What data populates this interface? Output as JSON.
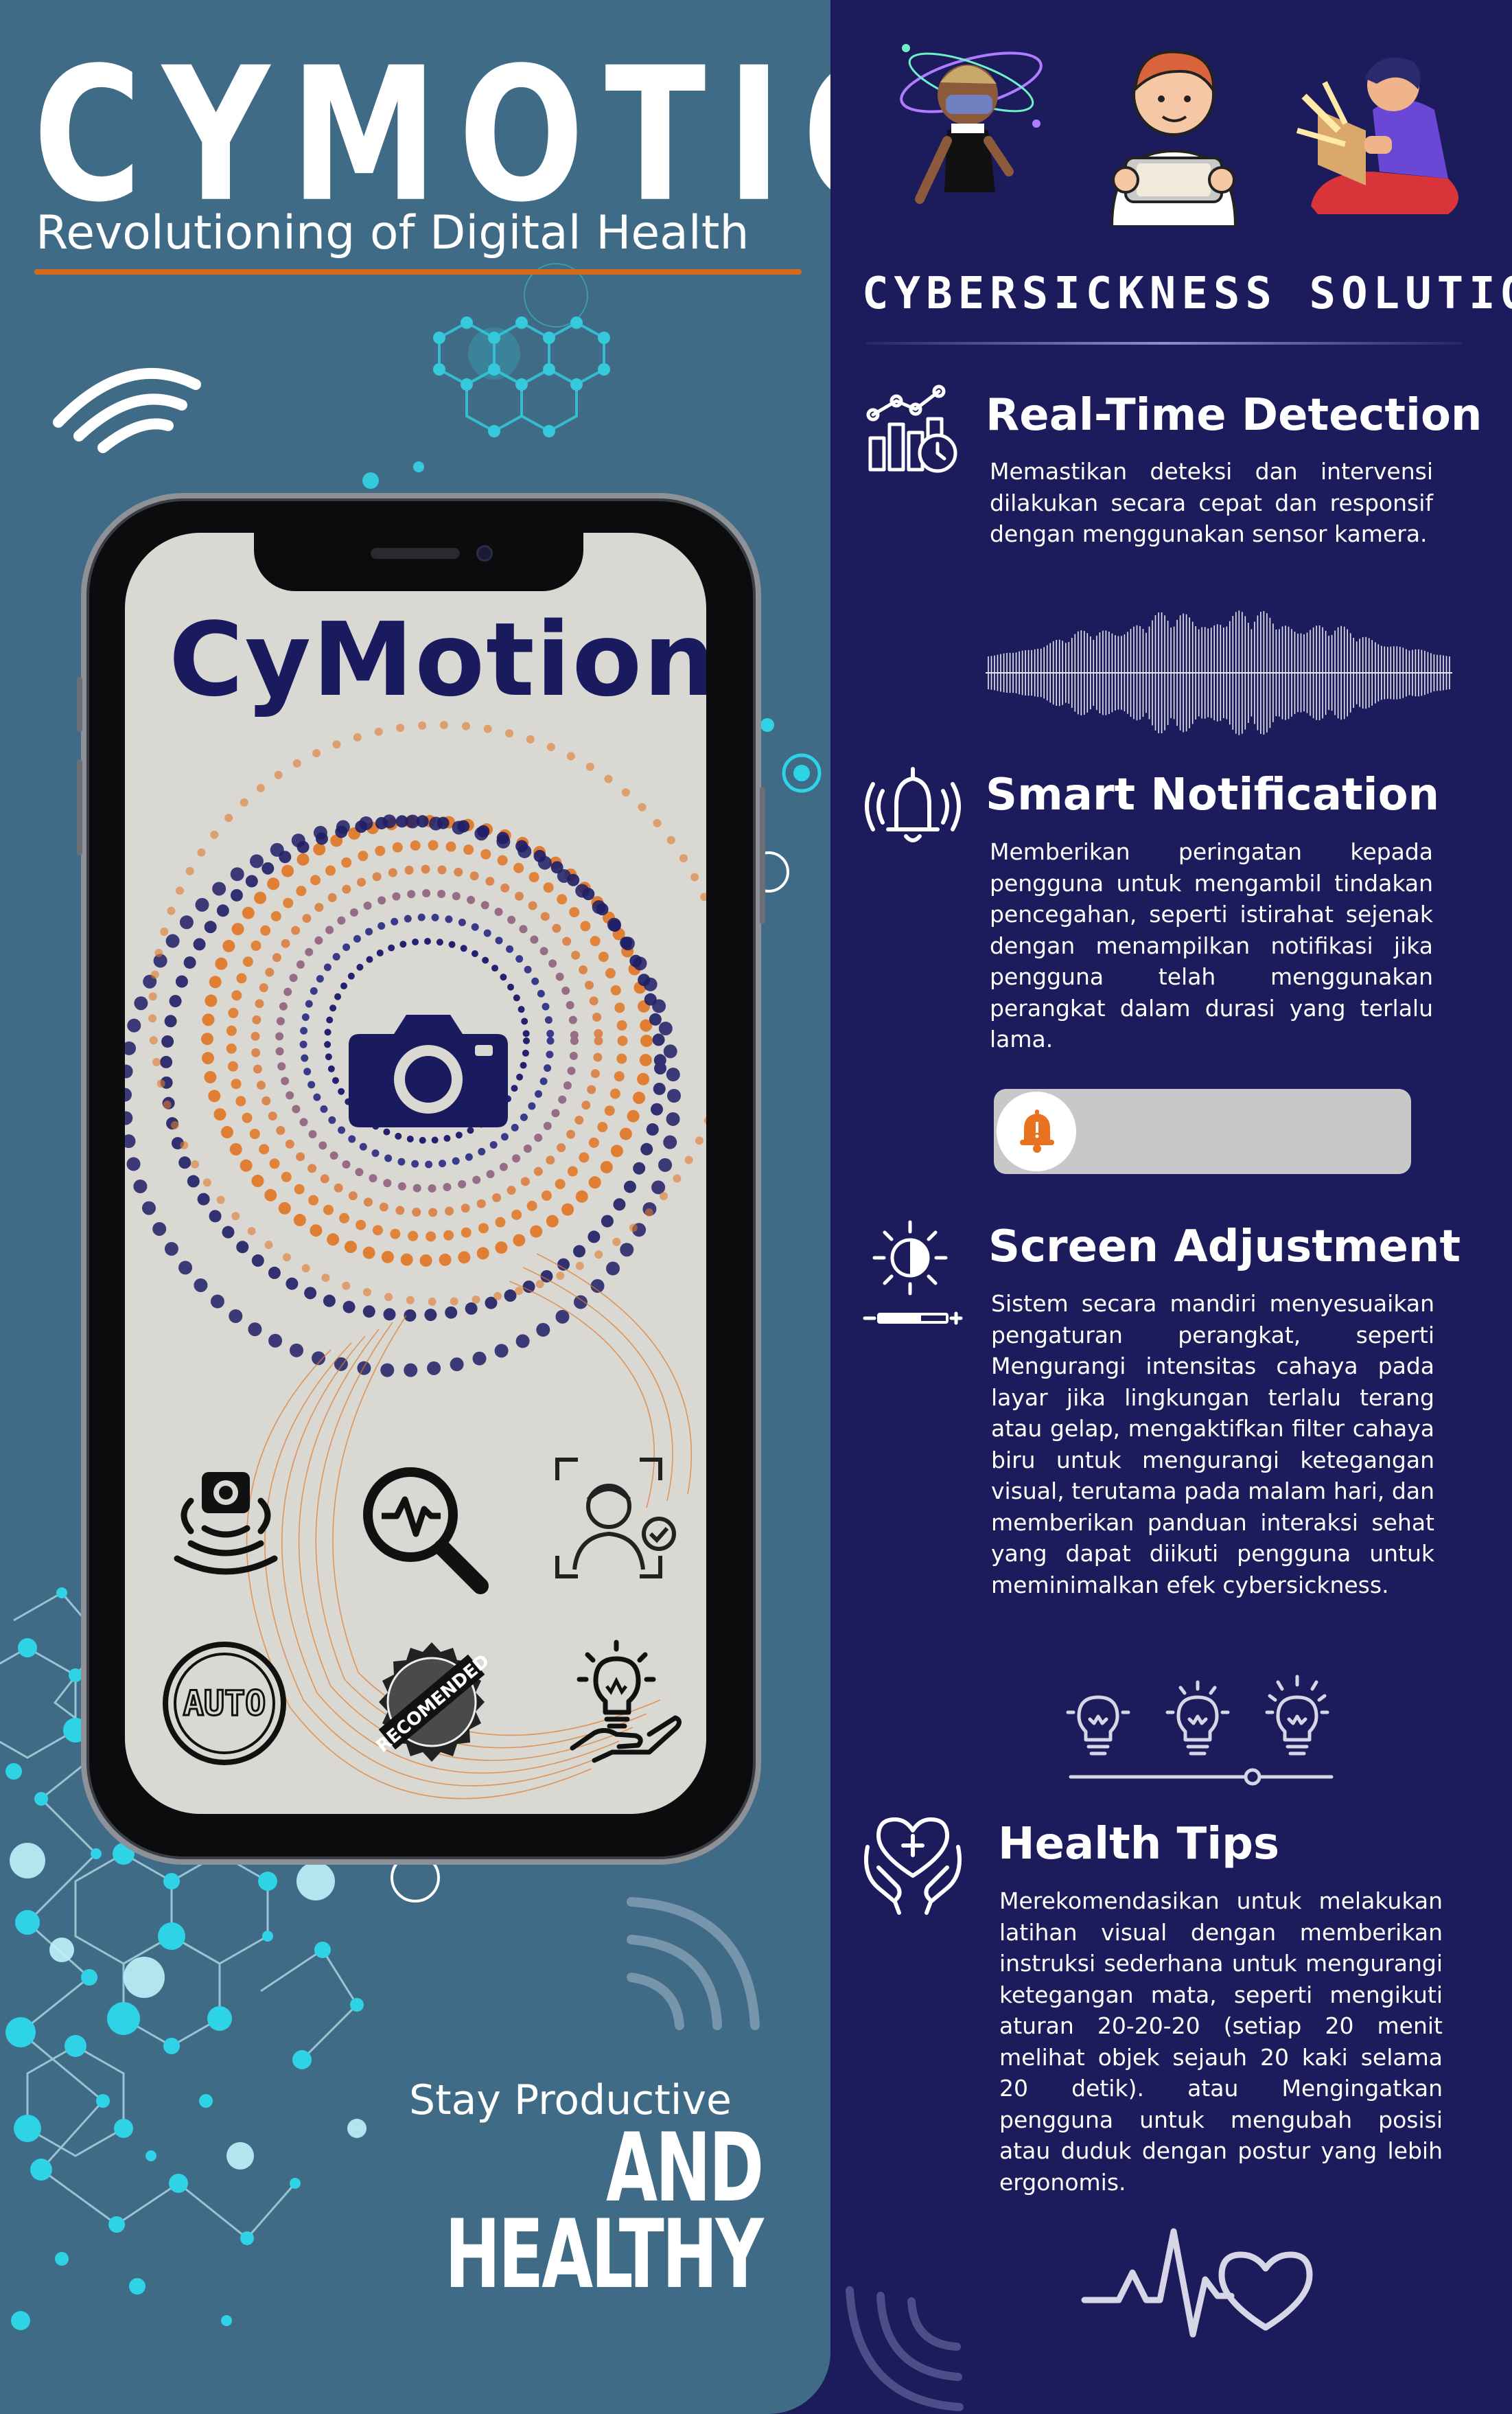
{
  "header": {
    "brand": "CYMOTION",
    "tagline": "Revolutioning of Digital Health"
  },
  "phone": {
    "app_name": "CyMotion",
    "icons": [
      "camera-icon",
      "face-scan-sensor-icon",
      "pulse-search-icon",
      "face-recognition-check-icon",
      "auto-badge-icon",
      "recommended-stamp-icon",
      "lightbulb-hand-icon"
    ],
    "auto_label": "AUTO",
    "stamp_label": "RECOMENDED"
  },
  "slogan": {
    "line1": "Stay Productive",
    "line2": "AND",
    "line3": "HEALTHY"
  },
  "solution": {
    "title": "CYBERSICKNESS SOLUTION",
    "features": [
      {
        "icon": "analytics-clock-icon",
        "title": "Real-Time Detection",
        "body": "Memastikan deteksi dan intervensi dilakukan secara cepat dan responsif dengan menggunakan sensor kamera."
      },
      {
        "icon": "ringing-bell-icon",
        "title": "Smart Notification",
        "body": "Memberikan peringatan kepada pengguna untuk mengambil tindakan pencegahan, seperti istirahat sejenak dengan menampilkan notifikasi jika pengguna telah menggunakan perangkat dalam durasi yang terlalu lama."
      },
      {
        "icon": "brightness-icon",
        "title": "Screen Adjustment",
        "body": "Sistem secara mandiri menyesuaikan pengaturan perangkat, seperti Mengurangi intensitas cahaya pada layar jika lingkungan terlalu terang atau gelap, mengaktifkan filter cahaya biru untuk mengurangi ketegangan visual, terutama pada malam hari, dan memberikan panduan interaksi sehat yang dapat diikuti pengguna untuk meminimalkan efek cybersickness."
      },
      {
        "icon": "heart-hands-icon",
        "title": "Health Tips",
        "body": "Merekomendasikan untuk melakukan latihan visual dengan memberikan instruksi sederhana untuk mengurangi ketegangan mata, seperti mengikuti aturan 20-20-20 (setiap 20 menit melihat objek sejauh 20 kaki selama 20 detik). atau Mengingatkan pengguna untuk mengubah posisi atau duduk dengan postur yang lebih ergonomis."
      }
    ]
  },
  "colors": {
    "left_bg": "#3f6b86",
    "right_bg": "#1c1b5c",
    "accent_orange": "#d36a1c",
    "navy": "#1a1a5e",
    "cyan": "#2fd3e6"
  }
}
